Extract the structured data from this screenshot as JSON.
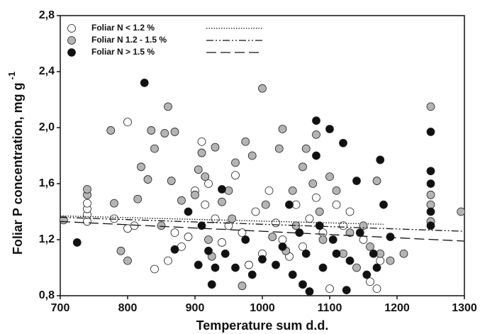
{
  "chart_data": {
    "type": "scatter",
    "xlabel": "Temperature sum d.d.",
    "ylabel": "Foliar P concentration, mg g",
    "ylabel_sup": "-1",
    "xlim": [
      700,
      1300
    ],
    "xticks": [
      700,
      800,
      900,
      1000,
      1100,
      1200,
      1300
    ],
    "ylim": [
      0.8,
      2.8
    ],
    "yticks": [
      {
        "value": 0.8,
        "label": "0,8"
      },
      {
        "value": 1.2,
        "label": "1,2"
      },
      {
        "value": 1.6,
        "label": "1,6"
      },
      {
        "value": 2.0,
        "label": "2,0"
      },
      {
        "value": 2.4,
        "label": "2,4"
      },
      {
        "value": 2.8,
        "label": "2,8"
      }
    ],
    "legend": "top-left",
    "series": [
      {
        "name": "Foliar N < 1.2 %",
        "color": "#ffffff",
        "line_style": "dotted",
        "x": [
          740,
          740,
          740,
          740,
          780,
          800,
          800,
          810,
          840,
          860,
          870,
          880,
          890,
          900,
          910,
          915,
          920,
          930,
          940,
          950,
          960,
          970,
          980,
          990,
          1000,
          1010,
          1020,
          1030,
          1040,
          1050,
          1060,
          1070,
          1080,
          1090,
          1100,
          1110,
          1120,
          1130,
          1150,
          1160,
          1170,
          1175
        ],
        "values": [
          1.33,
          1.38,
          1.42,
          1.46,
          1.35,
          1.28,
          2.04,
          1.3,
          0.99,
          1.05,
          1.25,
          1.15,
          1.22,
          1.55,
          1.9,
          1.45,
          1.6,
          1.35,
          1.18,
          1.3,
          1.66,
          1.25,
          1.02,
          1.4,
          1.1,
          1.55,
          1.32,
          1.2,
          1.08,
          1.45,
          1.15,
          1.35,
          1.5,
          1.25,
          0.85,
          1.45,
          1.3,
          1.4,
          1.2,
          0.9,
          0.85,
          1.05
        ],
        "trend": {
          "x": [
            700,
            1180
          ],
          "values": [
            1.37,
            1.31
          ]
        }
      },
      {
        "name": "Foliar N 1.2 - 1.5 %",
        "color": "#b4b4b4",
        "line_style": "dash-dot",
        "x": [
          705,
          740,
          740,
          775,
          780,
          790,
          800,
          815,
          820,
          830,
          835,
          840,
          850,
          855,
          860,
          865,
          870,
          880,
          900,
          905,
          910,
          915,
          920,
          925,
          930,
          940,
          950,
          955,
          960,
          970,
          975,
          985,
          1000,
          1005,
          1015,
          1025,
          1030,
          1035,
          1045,
          1050,
          1060,
          1065,
          1075,
          1080,
          1085,
          1090,
          1100,
          1110,
          1120,
          1130,
          1140,
          1150,
          1160,
          1170,
          1175,
          1190,
          1210,
          1250,
          1250,
          1250,
          1250,
          1295
        ],
        "values": [
          1.34,
          1.52,
          1.56,
          1.98,
          1.46,
          1.12,
          1.05,
          1.49,
          1.72,
          1.63,
          1.98,
          1.85,
          1.3,
          1.96,
          2.15,
          1.62,
          1.97,
          1.48,
          1.52,
          1.7,
          1.82,
          1.65,
          1.2,
          1.08,
          1.86,
          1.47,
          1.55,
          1.35,
          1.75,
          0.87,
          1.9,
          1.8,
          2.28,
          1.45,
          1.22,
          1.85,
          1.99,
          1.12,
          1.55,
          1.3,
          1.72,
          1.85,
          1.6,
          1.95,
          1.4,
          1.2,
          1.65,
          1.55,
          1.1,
          1.25,
          1.0,
          1.3,
          1.15,
          1.62,
          1.1,
          1.05,
          1.1,
          1.33,
          1.45,
          1.52,
          2.15,
          1.4
        ],
        "trend": {
          "x": [
            700,
            1300
          ],
          "values": [
            1.36,
            1.26
          ]
        }
      },
      {
        "name": "Foliar N > 1.5 %",
        "color": "#111111",
        "line_style": "dashed",
        "x": [
          725,
          825,
          870,
          890,
          905,
          910,
          920,
          925,
          930,
          940,
          945,
          960,
          975,
          985,
          1000,
          1020,
          1030,
          1040,
          1045,
          1055,
          1060,
          1065,
          1070,
          1080,
          1080,
          1085,
          1090,
          1100,
          1105,
          1110,
          1120,
          1125,
          1130,
          1140,
          1145,
          1155,
          1165,
          1170,
          1175,
          1180,
          1190,
          1250,
          1250,
          1250,
          1250,
          1250
        ],
        "values": [
          1.18,
          2.32,
          1.13,
          1.4,
          1.02,
          1.3,
          1.12,
          0.88,
          1.0,
          1.56,
          1.1,
          1.0,
          1.2,
          0.95,
          1.06,
          1.02,
          1.15,
          1.45,
          0.95,
          1.25,
          0.88,
          1.1,
          0.83,
          2.05,
          1.8,
          1.3,
          1.0,
          1.99,
          1.2,
          1.1,
          1.89,
          0.84,
          1.05,
          1.62,
          1.25,
          0.95,
          1.1,
          1.0,
          1.77,
          1.45,
          1.22,
          1.97,
          1.69,
          1.6,
          1.4,
          1.3
        ],
        "trend": {
          "x": [
            700,
            1300
          ],
          "values": [
            1.33,
            1.19
          ]
        }
      }
    ]
  }
}
